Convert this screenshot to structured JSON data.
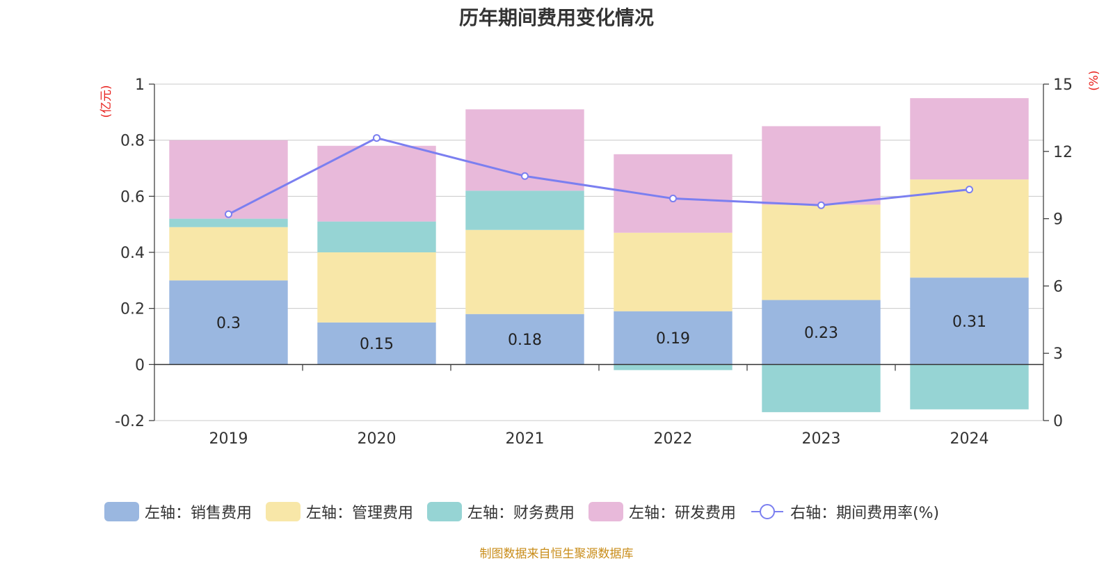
{
  "chart_data": {
    "type": "bar",
    "title": "历年期间费用变化情况",
    "left_axis_unit": "(亿元)",
    "right_axis_unit": "(%)",
    "categories": [
      "2019",
      "2020",
      "2021",
      "2022",
      "2023",
      "2024"
    ],
    "y_left": {
      "min": -0.2,
      "max": 1,
      "ticks": [
        -0.2,
        0,
        0.2,
        0.4,
        0.6,
        0.8,
        1
      ],
      "tick_labels": [
        "-0.2",
        "0",
        "0.2",
        "0.4",
        "0.6",
        "0.8",
        "1"
      ]
    },
    "y_right": {
      "min": 0,
      "max": 15,
      "ticks": [
        0,
        3,
        6,
        9,
        12,
        15
      ],
      "tick_labels": [
        "0",
        "3",
        "6",
        "9",
        "12",
        "15"
      ]
    },
    "grid": true,
    "legend_position": "bottom",
    "series": [
      {
        "name": "左轴：销售费用",
        "type": "bar",
        "stack": true,
        "color": "#9ab7e0",
        "values": [
          0.3,
          0.15,
          0.18,
          0.19,
          0.23,
          0.31
        ],
        "data_labels": [
          "0.3",
          "0.15",
          "0.18",
          "0.19",
          "0.23",
          "0.31"
        ]
      },
      {
        "name": "左轴：管理费用",
        "type": "bar",
        "stack": true,
        "color": "#f8e7a8",
        "values": [
          0.19,
          0.25,
          0.3,
          0.28,
          0.34,
          0.35
        ]
      },
      {
        "name": "左轴：财务费用",
        "type": "bar",
        "stack": true,
        "color": "#96d4d4",
        "values": [
          0.03,
          0.11,
          0.14,
          -0.02,
          -0.17,
          -0.16
        ]
      },
      {
        "name": "左轴：研发费用",
        "type": "bar",
        "stack": true,
        "color": "#e8b9da",
        "values": [
          0.28,
          0.27,
          0.29,
          0.28,
          0.28,
          0.29
        ]
      },
      {
        "name": "右轴：期间费用率(%)",
        "type": "line",
        "axis": "right",
        "color": "#7b7ff0",
        "values": [
          9.2,
          12.6,
          10.9,
          9.9,
          9.6,
          10.3
        ]
      }
    ]
  },
  "source_note": "制图数据来自恒生聚源数据库"
}
